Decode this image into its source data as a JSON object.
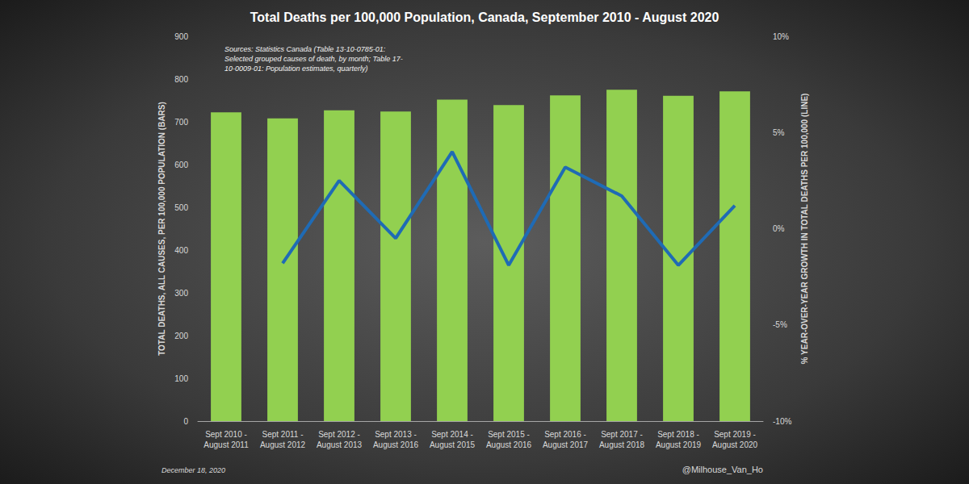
{
  "chart_data": {
    "type": "bar",
    "title": "Total Deaths per 100,000 Population, Canada, September 2010 - August 2020",
    "source": "Sources: Statistics Canada (Table 13-10-0785-01:\nSelected grouped causes of death, by month; Table 17-\n10-0009-01: Population estimates, quarterly)",
    "date": "December 18, 2020",
    "credit": "@Milhouse_Van_Ho",
    "ylabel": "TOTAL DEATHS, ALL CAUSES, PER 100,000 POPULATION (BARS)",
    "y2label": "% YEAR-OVER-YEAR GROWTH IN TOTAL DEATHS PER 100,000 (LINE)",
    "categories": [
      "Sept 2010 -\nAugust 2011",
      "Sept 2011 -\nAugust 2012",
      "Sept 2012 -\nAugust 2013",
      "Sept 2013 -\nAugust 2016",
      "Sept 2014 -\nAugust 2015",
      "Sept 2015 -\nAugust 2016",
      "Sept 2016 -\nAugust 2017",
      "Sept 2017 -\nAugust 2018",
      "Sept 2018 -\nAugust 2019",
      "Sept 2019 -\nAugust 2020"
    ],
    "series": [
      {
        "type": "bar",
        "color": "#92d050",
        "values": [
          722,
          708,
          727,
          724,
          752,
          739,
          762,
          775,
          761,
          771
        ]
      },
      {
        "type": "line",
        "color": "#1f6bb5",
        "axis": "y2",
        "values": [
          null,
          -1.8,
          2.5,
          -0.5,
          4.0,
          -1.9,
          3.2,
          1.7,
          -1.9,
          1.2
        ]
      }
    ],
    "ylim": [
      0,
      900
    ],
    "yticks": [
      0,
      100,
      200,
      300,
      400,
      500,
      600,
      700,
      800,
      900
    ],
    "y2lim": [
      -10,
      10
    ],
    "y2ticks": [
      {
        "value": -10,
        "label": "-10%"
      },
      {
        "value": -5,
        "label": "-5%"
      },
      {
        "value": 0,
        "label": "0%"
      },
      {
        "value": 5,
        "label": "5%"
      },
      {
        "value": 10,
        "label": "10%"
      }
    ],
    "grid": false
  }
}
